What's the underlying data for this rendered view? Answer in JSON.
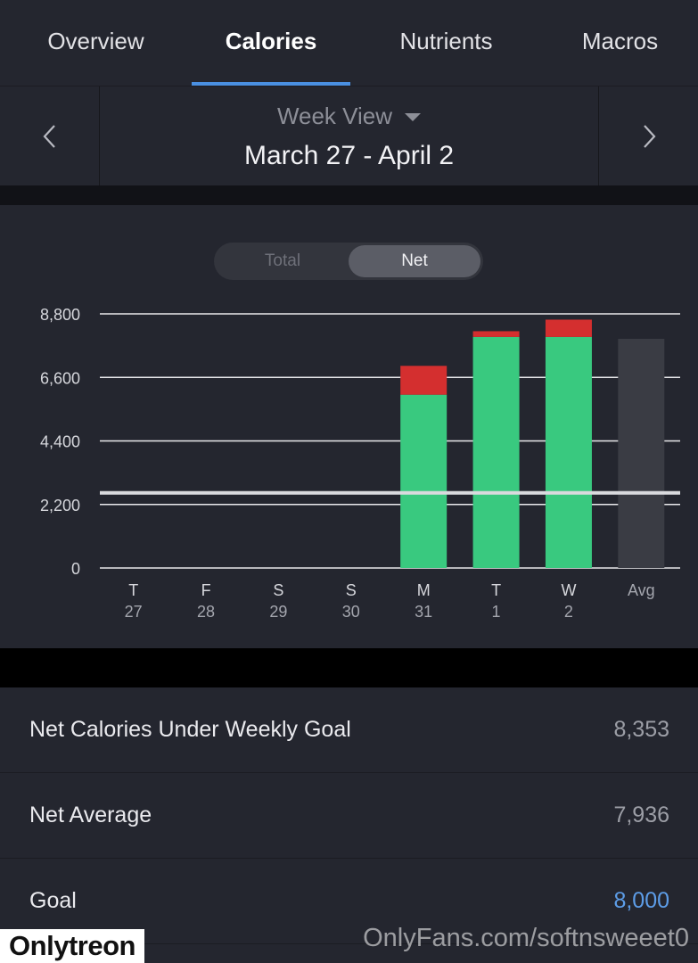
{
  "tabs": [
    {
      "label": "Overview",
      "active": false
    },
    {
      "label": "Calories",
      "active": true
    },
    {
      "label": "Nutrients",
      "active": false
    },
    {
      "label": "Macros",
      "active": false
    }
  ],
  "week": {
    "view_label": "Week View",
    "range": "March 27 - April 2",
    "prev_icon": "chevron-left-icon",
    "next_icon": "chevron-right-icon"
  },
  "toggle": {
    "options": [
      "Total",
      "Net"
    ],
    "selected": "Net"
  },
  "chart_data": {
    "type": "bar",
    "stacked": true,
    "y_ticks": [
      "8,800",
      "6,600",
      "4,400",
      "2,200",
      "0"
    ],
    "ylim": [
      0,
      8800
    ],
    "goal_line": 2600,
    "categories": [
      {
        "day": "T",
        "date": "27"
      },
      {
        "day": "F",
        "date": "28"
      },
      {
        "day": "S",
        "date": "29"
      },
      {
        "day": "S",
        "date": "30"
      },
      {
        "day": "M",
        "date": "31"
      },
      {
        "day": "T",
        "date": "1"
      },
      {
        "day": "W",
        "date": "2"
      },
      {
        "day": "Avg",
        "date": ""
      }
    ],
    "series": [
      {
        "color": "#39c97f",
        "values": [
          0,
          0,
          0,
          0,
          6000,
          8000,
          8000,
          0
        ]
      },
      {
        "color": "#d42f2f",
        "values": [
          0,
          0,
          0,
          0,
          1000,
          200,
          600,
          0
        ]
      },
      {
        "color": "#3a3c44",
        "values": [
          0,
          0,
          0,
          0,
          0,
          0,
          0,
          7936
        ]
      }
    ]
  },
  "stats": [
    {
      "label": "Net Calories Under Weekly Goal",
      "value": "8,353",
      "link": false
    },
    {
      "label": "Net Average",
      "value": "7,936",
      "link": false
    },
    {
      "label": "Goal",
      "value": "8,000",
      "link": true
    }
  ],
  "watermarks": {
    "left": "Onlytreon",
    "right": "OnlyFans.com/softnsweeet0"
  }
}
